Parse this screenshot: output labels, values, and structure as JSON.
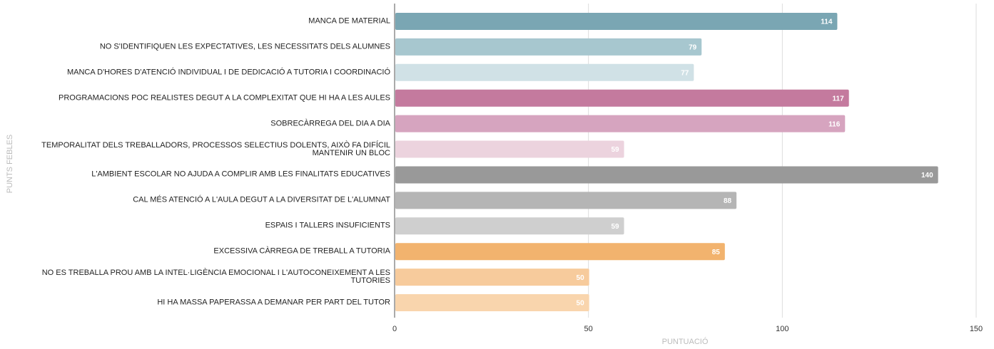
{
  "chart_data": {
    "type": "bar",
    "orientation": "horizontal",
    "categories": [
      "MANCA DE MATERIAL",
      "NO S'IDENTIFIQUEN LES EXPECTATIVES, LES NECESSITATS DELS ALUMNES",
      "MANCA D'HORES D'ATENCIÓ INDIVIDUAL I DE DEDICACIÓ A TUTORIA I COORDINACIÓ",
      "PROGRAMACIONS POC REALISTES DEGUT A LA COMPLEXITAT QUE HI HA A LES AULES",
      "SOBRECÀRREGA DEL DIA A DIA",
      "TEMPORALITAT DELS TREBALLADORS, PROCESSOS SELECTIUS DOLENTS, AIXÒ FA DIFÍCIL MANTENIR UN BLOC",
      "L'AMBIENT ESCOLAR NO AJUDA A COMPLIR AMB LES FINALITATS EDUCATIVES",
      "CAL MÉS ATENCIÓ A L'AULA DEGUT A LA DIVERSITAT DE L'ALUMNAT",
      "ESPAIS I TALLERS INSUFICIENTS",
      "EXCESSIVA CÀRREGA DE TREBALL A TUTORIA",
      "NO ES TREBALLA PROU AMB LA INTEL·LIGÈNCIA EMOCIONAL I L'AUTOCONEIXEMENT A LES TUTORIES",
      "HI HA MASSA PAPERASSA A DEMANAR PER PART DEL TUTOR"
    ],
    "values": [
      114,
      79,
      77,
      117,
      116,
      59,
      140,
      88,
      59,
      85,
      50,
      50
    ],
    "colors": [
      "#7aa6b3",
      "#a7c7cf",
      "#d0e1e6",
      "#c47a9e",
      "#d6a4bf",
      "#ecd3de",
      "#999999",
      "#b5b5b5",
      "#cfcfcf",
      "#f2b36e",
      "#f7cb9c",
      "#f9d5ad"
    ],
    "xlabel": "PUNTUACIÓ",
    "ylabel": "PUNTS FEBLES",
    "xlim": [
      0,
      150
    ],
    "xticks": [
      0,
      50,
      100,
      150
    ],
    "grid": true
  }
}
